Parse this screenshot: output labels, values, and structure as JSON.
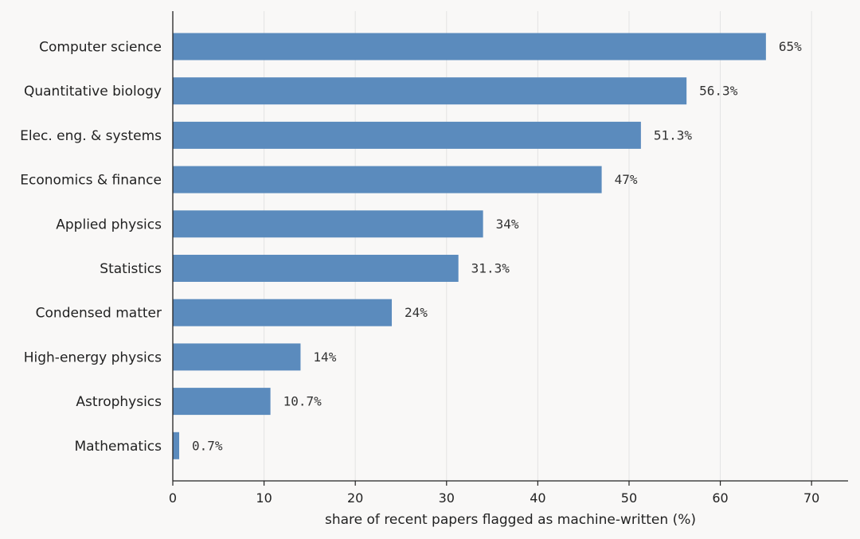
{
  "chart_data": {
    "type": "bar",
    "orientation": "horizontal",
    "categories": [
      "Computer science",
      "Quantitative biology",
      "Elec. eng. & systems",
      "Economics & finance",
      "Applied physics",
      "Statistics",
      "Condensed matter",
      "High-energy physics",
      "Astrophysics",
      "Mathematics"
    ],
    "values": [
      65,
      56.3,
      51.3,
      47,
      34,
      31.3,
      24,
      14,
      10.7,
      0.7
    ],
    "value_labels": [
      "65%",
      "56.3%",
      "51.3%",
      "47%",
      "34%",
      "31.3%",
      "24%",
      "14%",
      "10.7%",
      "0.7%"
    ],
    "xlabel": "share of recent papers flagged as machine-written (%)",
    "ylabel": "",
    "xlim": [
      0,
      74
    ],
    "xticks": [
      0,
      10,
      20,
      30,
      40,
      50,
      60,
      70
    ],
    "grid": "vertical",
    "bar_color": "#5b8bbd"
  }
}
